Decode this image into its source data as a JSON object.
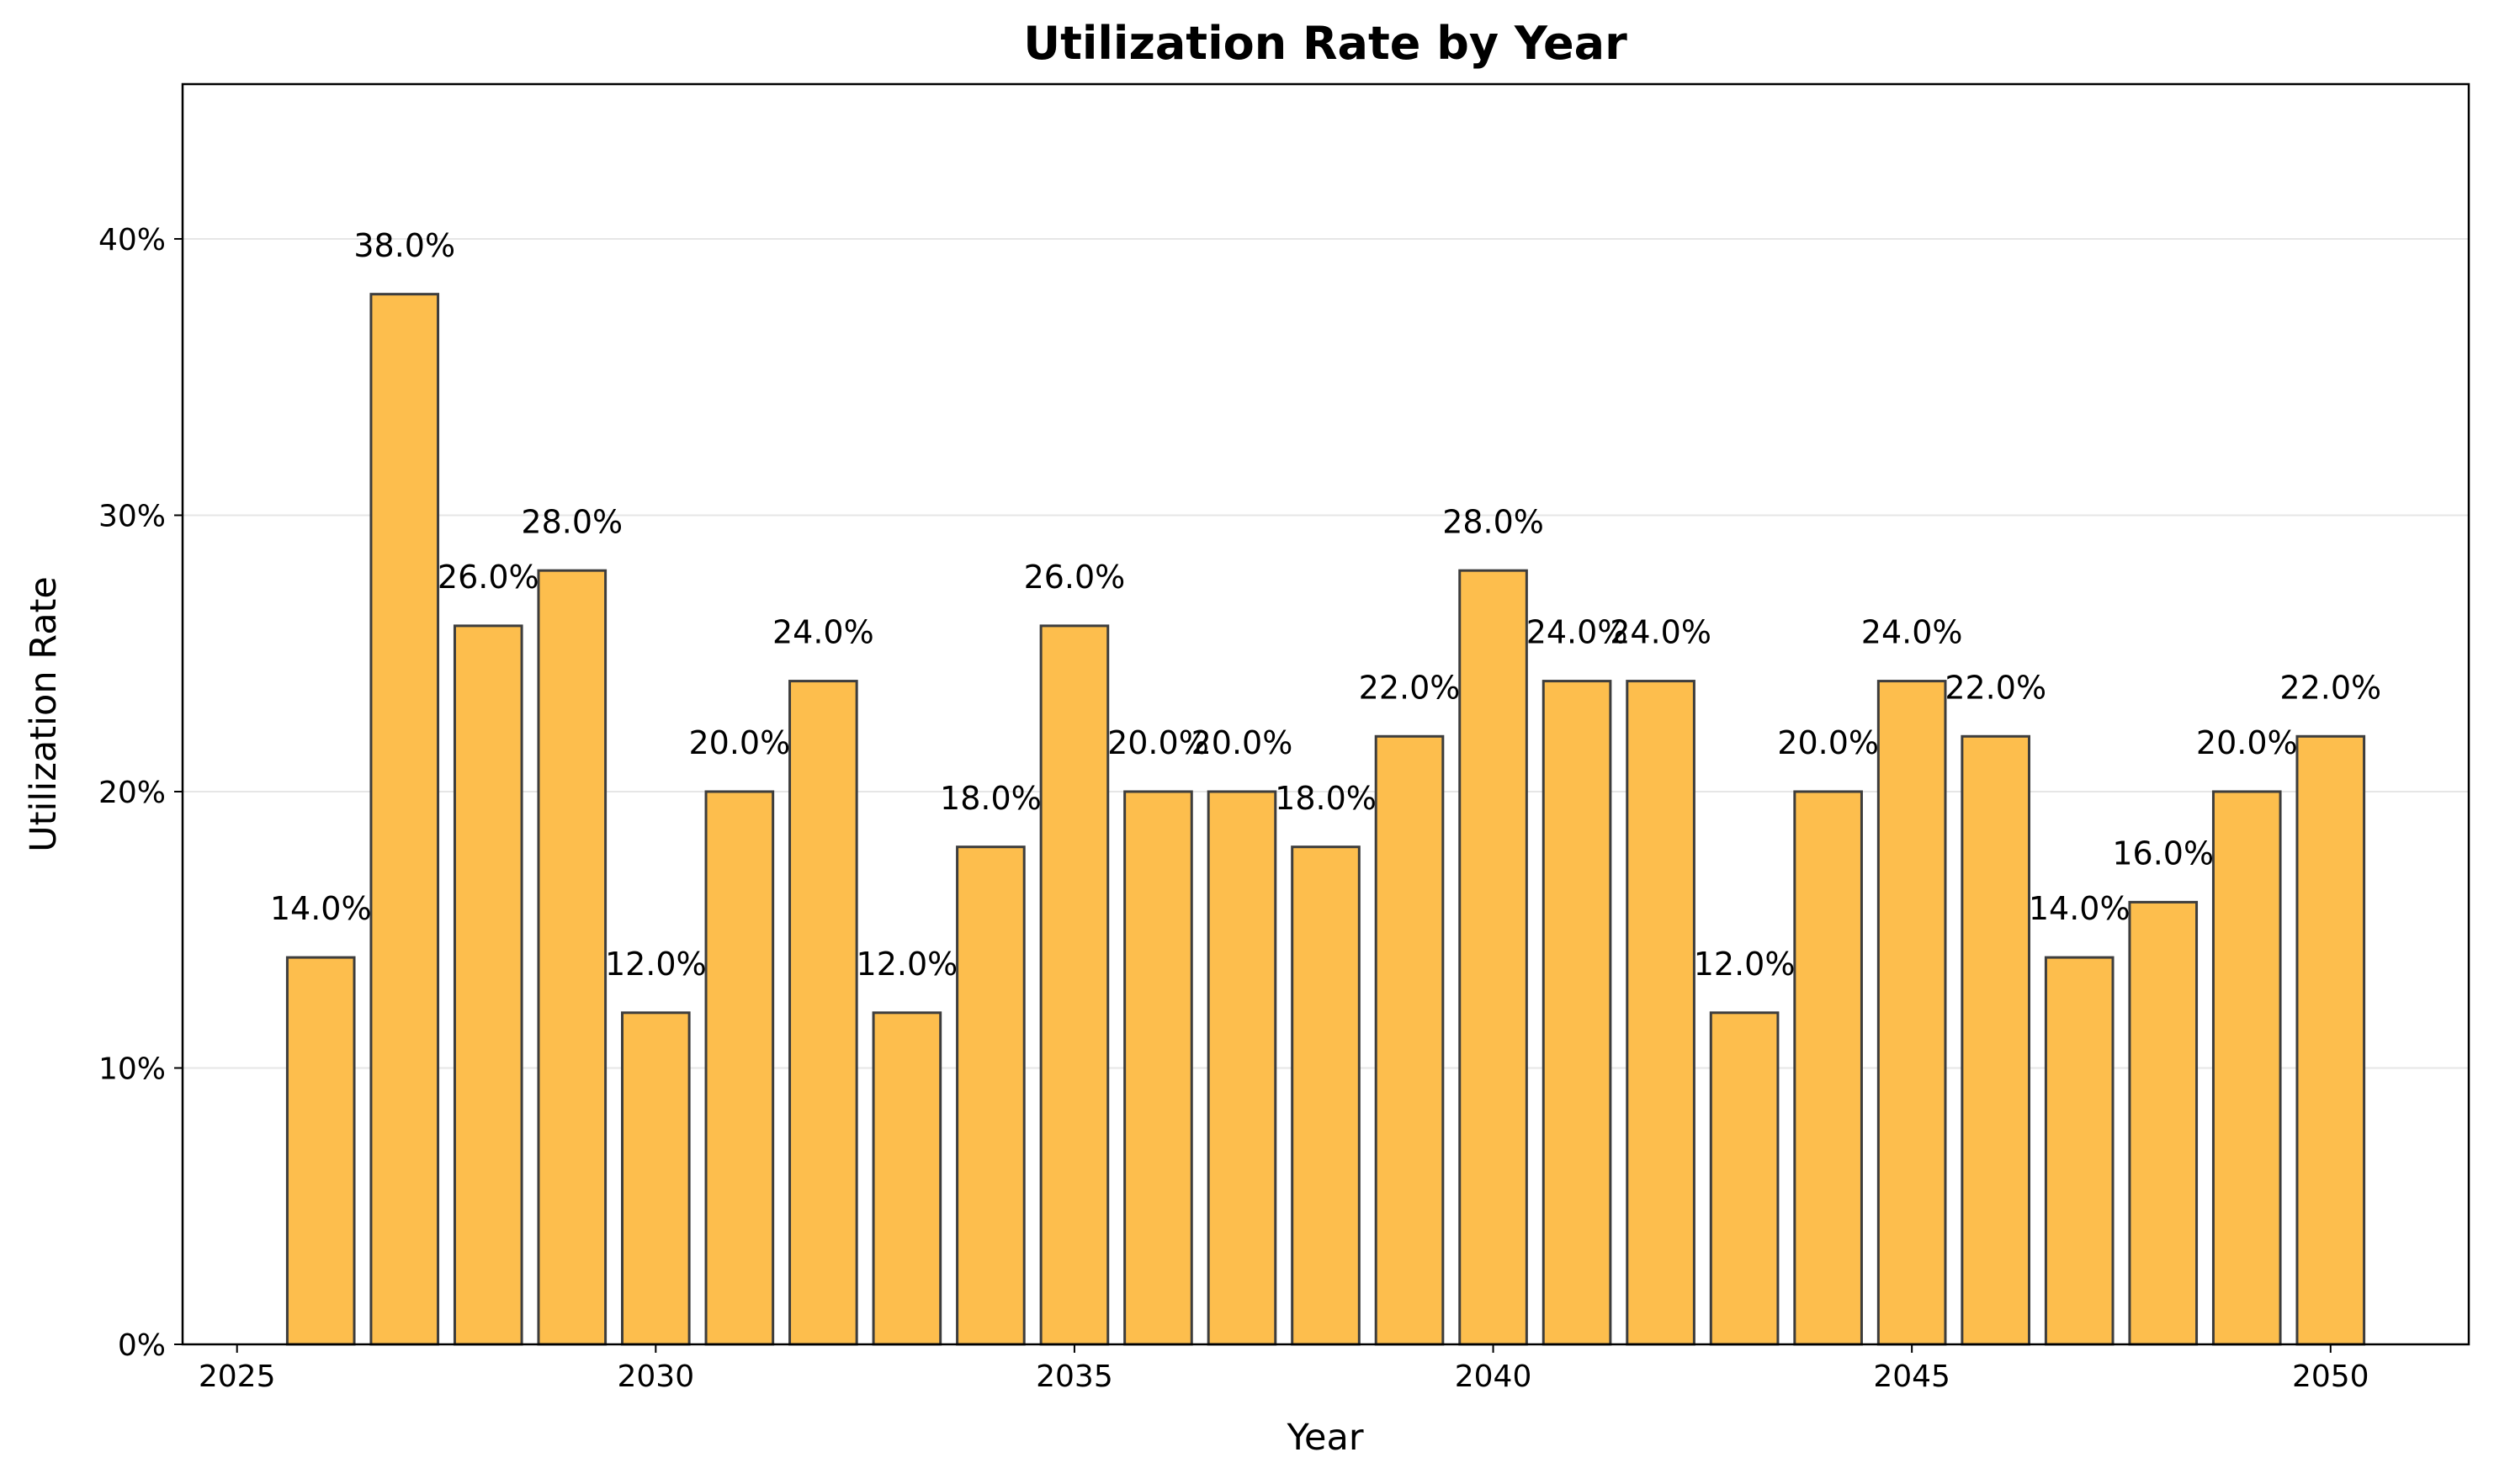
{
  "chart_data": {
    "type": "bar",
    "title": "Utilization Rate by Year",
    "xlabel": "Year",
    "ylabel": "Utilization Rate",
    "x": [
      2026,
      2027,
      2028,
      2029,
      2030,
      2031,
      2032,
      2033,
      2034,
      2035,
      2036,
      2037,
      2038,
      2039,
      2040,
      2041,
      2042,
      2043,
      2044,
      2045,
      2046,
      2047,
      2048,
      2049,
      2050
    ],
    "values": [
      14,
      38,
      26,
      28,
      12,
      20,
      24,
      12,
      18,
      26,
      20,
      20,
      18,
      22,
      28,
      24,
      24,
      12,
      20,
      24,
      22,
      14,
      16,
      20,
      22
    ],
    "data_labels": [
      "14.0%",
      "38.0%",
      "26.0%",
      "28.0%",
      "12.0%",
      "20.0%",
      "24.0%",
      "12.0%",
      "18.0%",
      "26.0%",
      "20.0%",
      "20.0%",
      "18.0%",
      "22.0%",
      "28.0%",
      "24.0%",
      "24.0%",
      "12.0%",
      "20.0%",
      "24.0%",
      "22.0%",
      "14.0%",
      "16.0%",
      "20.0%",
      "22.0%"
    ],
    "value_unit": "%",
    "xlim": [
      2024.35,
      2051.65
    ],
    "ylim": [
      0,
      45.6
    ],
    "xticks": [
      2025,
      2030,
      2035,
      2040,
      2045,
      2050
    ],
    "xtick_labels": [
      "2025",
      "2030",
      "2035",
      "2040",
      "2045",
      "2050"
    ],
    "yticks": [
      0,
      10,
      20,
      30,
      40
    ],
    "ytick_labels": [
      "0%",
      "10%",
      "20%",
      "30%",
      "40%"
    ],
    "grid": {
      "y": true,
      "x": false
    },
    "legend": "none",
    "colors": {
      "bar_fill": "#fdbe4d",
      "bar_edge": "#3d3d3d",
      "grid": "#e6e6e6",
      "axis": "#000000"
    }
  }
}
